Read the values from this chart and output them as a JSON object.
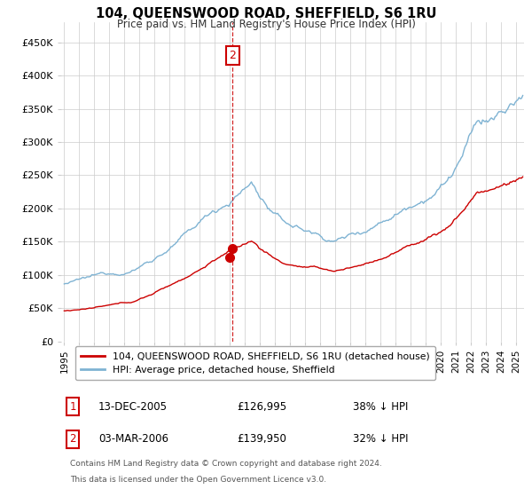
{
  "title": "104, QUEENSWOOD ROAD, SHEFFIELD, S6 1RU",
  "subtitle": "Price paid vs. HM Land Registry's House Price Index (HPI)",
  "legend_line1": "104, QUEENSWOOD ROAD, SHEFFIELD, S6 1RU (detached house)",
  "legend_line2": "HPI: Average price, detached house, Sheffield",
  "footer": "Contains HM Land Registry data © Crown copyright and database right 2024.\nThis data is licensed under the Open Government Licence v3.0.",
  "table_rows": [
    {
      "num": "1",
      "date": "13-DEC-2005",
      "price": "£126,995",
      "pct": "38% ↓ HPI"
    },
    {
      "num": "2",
      "date": "03-MAR-2006",
      "price": "£139,950",
      "pct": "32% ↓ HPI"
    }
  ],
  "sale1_x": 2005.96,
  "sale1_y": 126995,
  "sale2_x": 2006.17,
  "sale2_y": 139950,
  "red_color": "#cc0000",
  "blue_color": "#7fb3d3",
  "annotation_box_color": "#cc0000",
  "ylim_min": 0,
  "ylim_max": 480000,
  "xlim_min": 1994.8,
  "xlim_max": 2025.5,
  "yticks": [
    0,
    50000,
    100000,
    150000,
    200000,
    250000,
    300000,
    350000,
    400000,
    450000
  ],
  "ytick_labels": [
    "£0",
    "£50K",
    "£100K",
    "£150K",
    "£200K",
    "£250K",
    "£300K",
    "£350K",
    "£400K",
    "£450K"
  ],
  "xtick_years": [
    1995,
    1996,
    1997,
    1998,
    1999,
    2000,
    2001,
    2002,
    2003,
    2004,
    2005,
    2006,
    2007,
    2008,
    2009,
    2010,
    2011,
    2012,
    2013,
    2014,
    2015,
    2016,
    2017,
    2018,
    2019,
    2020,
    2021,
    2022,
    2023,
    2024,
    2025
  ]
}
